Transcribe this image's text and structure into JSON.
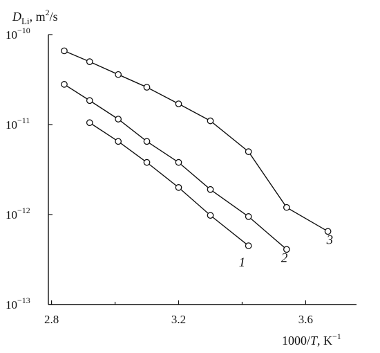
{
  "chart_data": {
    "type": "line",
    "ylabel": "D",
    "ylabel_sub": "Li",
    "ylabel_unit": ", m",
    "ylabel_unit_exp": "2",
    "ylabel_unit_tail": "/s",
    "xlabel_pre": "1000/",
    "xlabel_var": "T",
    "xlabel_post": ", K",
    "xlabel_exp": "−1",
    "x_scale": "linear",
    "y_scale": "log",
    "xlim": [
      2.79,
      3.76
    ],
    "ylim": [
      1e-13,
      1e-10
    ],
    "grid": false,
    "x_ticks": [
      {
        "value": 2.8,
        "label": "2.8"
      },
      {
        "value": 3.2,
        "label": "3.2"
      },
      {
        "value": 3.6,
        "label": "3.6"
      }
    ],
    "y_ticks": [
      {
        "value": 1e-10,
        "base": "10",
        "exp": "−10"
      },
      {
        "value": 1e-11,
        "base": "10",
        "exp": "−11"
      },
      {
        "value": 1e-12,
        "base": "10",
        "exp": "−12"
      },
      {
        "value": 1e-13,
        "base": "10",
        "exp": "−13"
      }
    ],
    "series": [
      {
        "name": "1",
        "x": [
          2.92,
          3.01,
          3.1,
          3.2,
          3.3,
          3.42
        ],
        "y": [
          1.05e-11,
          6.5e-12,
          3.8e-12,
          2e-12,
          9.8e-13,
          4.5e-13
        ]
      },
      {
        "name": "2",
        "x": [
          2.84,
          2.92,
          3.01,
          3.1,
          3.2,
          3.3,
          3.42,
          3.54
        ],
        "y": [
          2.8e-11,
          1.85e-11,
          1.15e-11,
          6.5e-12,
          3.8e-12,
          1.9e-12,
          9.5e-13,
          4.1e-13
        ]
      },
      {
        "name": "3",
        "x": [
          2.84,
          2.92,
          3.01,
          3.1,
          3.2,
          3.3,
          3.42,
          3.54,
          3.67
        ],
        "y": [
          6.6e-11,
          5e-11,
          3.6e-11,
          2.6e-11,
          1.7e-11,
          1.1e-11,
          5e-12,
          1.2e-12,
          6.5e-13
        ]
      }
    ]
  }
}
